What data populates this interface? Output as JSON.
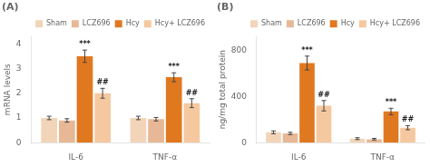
{
  "chart_data": [
    {
      "type": "bar",
      "title": "(A)",
      "y_label": "mRNA levels",
      "categories": [
        "IL-6",
        "TNF-α"
      ],
      "series": [
        {
          "name": "Sham",
          "color": "#f2d5b8",
          "values": [
            1.0,
            1.0
          ],
          "errors": [
            0.07,
            0.07
          ]
        },
        {
          "name": "LCZ696",
          "color": "#e8b896",
          "values": [
            0.9,
            0.95
          ],
          "errors": [
            0.07,
            0.07
          ]
        },
        {
          "name": "Hcy",
          "color": "#e07820",
          "values": [
            3.5,
            2.65
          ],
          "errors": [
            0.25,
            0.18
          ],
          "annotations": [
            "***",
            "***"
          ]
        },
        {
          "name": "Hcy+ LCZ696",
          "color": "#f5c8a0",
          "values": [
            2.0,
            1.6
          ],
          "errors": [
            0.2,
            0.18
          ],
          "annotations": [
            "##",
            "##"
          ]
        }
      ],
      "ylim": [
        0,
        4.3
      ],
      "yticks": [
        0,
        1,
        2,
        3,
        4
      ],
      "grid": false,
      "legend": "top"
    },
    {
      "type": "bar",
      "title": "(B)",
      "y_label": "ng/mg total protein",
      "categories": [
        "IL-6",
        "TNF-α"
      ],
      "series": [
        {
          "name": "Sham",
          "color": "#f2d5b8",
          "values": [
            90,
            35
          ],
          "errors": [
            12,
            8
          ]
        },
        {
          "name": "LCZ696",
          "color": "#e8b896",
          "values": [
            80,
            30
          ],
          "errors": [
            10,
            7
          ]
        },
        {
          "name": "Hcy",
          "color": "#e07820",
          "values": [
            690,
            270
          ],
          "errors": [
            60,
            28
          ],
          "annotations": [
            "***",
            "***"
          ]
        },
        {
          "name": "Hcy+ LCZ696",
          "color": "#f5c8a0",
          "values": [
            320,
            130
          ],
          "errors": [
            45,
            18
          ],
          "annotations": [
            "##",
            "##"
          ]
        }
      ],
      "ylim": [
        0,
        920
      ],
      "yticks": [
        0,
        400,
        800
      ],
      "grid": false,
      "legend": "top"
    }
  ]
}
